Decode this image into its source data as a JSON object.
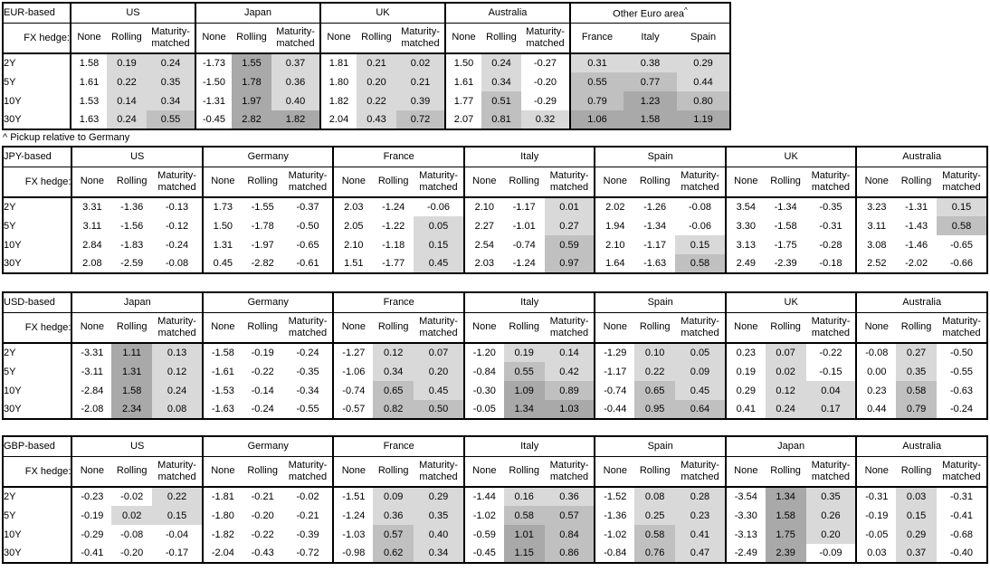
{
  "labels": {
    "fx_hedge": "FX hedge:"
  },
  "tenors": [
    "2Y",
    "5Y",
    "10Y",
    "30Y"
  ],
  "footnote": "^ Pickup relative to Germany",
  "heatmap": {
    "light": "#d9d9d9",
    "medium": "#c0c0c0",
    "dark": "#a9a9a9",
    "thresholds": [
      0,
      0.5,
      1.0
    ]
  },
  "tables": [
    {
      "label": "EUR-based",
      "groups": [
        {
          "name": "US",
          "cols": [
            "None",
            "Rolling",
            "Maturity-matched"
          ],
          "rows": [
            [
              "1.58",
              "0.19",
              "0.24"
            ],
            [
              "1.61",
              "0.22",
              "0.35"
            ],
            [
              "1.53",
              "0.14",
              "0.34"
            ],
            [
              "1.63",
              "0.24",
              "0.55"
            ]
          ]
        },
        {
          "name": "Japan",
          "cols": [
            "None",
            "Rolling",
            "Maturity-matched"
          ],
          "rows": [
            [
              "-1.73",
              "1.55",
              "0.37"
            ],
            [
              "-1.50",
              "1.78",
              "0.36"
            ],
            [
              "-1.31",
              "1.97",
              "0.40"
            ],
            [
              "-0.45",
              "2.82",
              "1.82"
            ]
          ]
        },
        {
          "name": "UK",
          "cols": [
            "None",
            "Rolling",
            "Maturity-matched"
          ],
          "rows": [
            [
              "1.81",
              "0.21",
              "0.02"
            ],
            [
              "1.80",
              "0.20",
              "0.21"
            ],
            [
              "1.82",
              "0.22",
              "0.39"
            ],
            [
              "2.04",
              "0.43",
              "0.72"
            ]
          ]
        },
        {
          "name": "Australia",
          "cols": [
            "None",
            "Rolling",
            "Maturity-matched"
          ],
          "rows": [
            [
              "1.50",
              "0.24",
              "-0.27"
            ],
            [
              "1.61",
              "0.34",
              "-0.20"
            ],
            [
              "1.77",
              "0.51",
              "-0.29"
            ],
            [
              "2.07",
              "0.81",
              "0.32"
            ]
          ]
        },
        {
          "name": "Other Euro area",
          "sup": "^",
          "shade_all": true,
          "cols": [
            "France",
            "Italy",
            "Spain"
          ],
          "rows": [
            [
              "0.31",
              "0.38",
              "0.29"
            ],
            [
              "0.55",
              "0.77",
              "0.44"
            ],
            [
              "0.79",
              "1.23",
              "0.80"
            ],
            [
              "1.06",
              "1.58",
              "1.19"
            ]
          ]
        }
      ]
    },
    {
      "label": "JPY-based",
      "groups": [
        {
          "name": "US",
          "cols": [
            "None",
            "Rolling",
            "Maturity-matched"
          ],
          "rows": [
            [
              "3.31",
              "-1.36",
              "-0.13"
            ],
            [
              "3.11",
              "-1.56",
              "-0.12"
            ],
            [
              "2.84",
              "-1.83",
              "-0.24"
            ],
            [
              "2.08",
              "-2.59",
              "-0.08"
            ]
          ]
        },
        {
          "name": "Germany",
          "cols": [
            "None",
            "Rolling",
            "Maturity-matched"
          ],
          "rows": [
            [
              "1.73",
              "-1.55",
              "-0.37"
            ],
            [
              "1.50",
              "-1.78",
              "-0.50"
            ],
            [
              "1.31",
              "-1.97",
              "-0.65"
            ],
            [
              "0.45",
              "-2.82",
              "-0.61"
            ]
          ]
        },
        {
          "name": "France",
          "cols": [
            "None",
            "Rolling",
            "Maturity-matched"
          ],
          "rows": [
            [
              "2.03",
              "-1.24",
              "-0.06"
            ],
            [
              "2.05",
              "-1.22",
              "0.05"
            ],
            [
              "2.10",
              "-1.18",
              "0.15"
            ],
            [
              "1.51",
              "-1.77",
              "0.45"
            ]
          ]
        },
        {
          "name": "Italy",
          "cols": [
            "None",
            "Rolling",
            "Maturity-matched"
          ],
          "rows": [
            [
              "2.10",
              "-1.17",
              "0.01"
            ],
            [
              "2.27",
              "-1.01",
              "0.27"
            ],
            [
              "2.54",
              "-0.74",
              "0.59"
            ],
            [
              "2.03",
              "-1.24",
              "0.97"
            ]
          ]
        },
        {
          "name": "Spain",
          "cols": [
            "None",
            "Rolling",
            "Maturity-matched"
          ],
          "rows": [
            [
              "2.02",
              "-1.26",
              "-0.08"
            ],
            [
              "1.94",
              "-1.34",
              "-0.06"
            ],
            [
              "2.10",
              "-1.17",
              "0.15"
            ],
            [
              "1.64",
              "-1.63",
              "0.58"
            ]
          ]
        },
        {
          "name": "UK",
          "cols": [
            "None",
            "Rolling",
            "Maturity-matched"
          ],
          "rows": [
            [
              "3.54",
              "-1.34",
              "-0.35"
            ],
            [
              "3.30",
              "-1.58",
              "-0.31"
            ],
            [
              "3.13",
              "-1.75",
              "-0.28"
            ],
            [
              "2.49",
              "-2.39",
              "-0.18"
            ]
          ]
        },
        {
          "name": "Australia",
          "cols": [
            "None",
            "Rolling",
            "Maturity-matched"
          ],
          "rows": [
            [
              "3.23",
              "-1.31",
              "0.15"
            ],
            [
              "3.11",
              "-1.43",
              "0.58"
            ],
            [
              "3.08",
              "-1.46",
              "-0.65"
            ],
            [
              "2.52",
              "-2.02",
              "-0.66"
            ]
          ]
        }
      ]
    },
    {
      "label": "USD-based",
      "groups": [
        {
          "name": "Japan",
          "cols": [
            "None",
            "Rolling",
            "Maturity-matched"
          ],
          "rows": [
            [
              "-3.31",
              "1.11",
              "0.13"
            ],
            [
              "-3.11",
              "1.31",
              "0.12"
            ],
            [
              "-2.84",
              "1.58",
              "0.24"
            ],
            [
              "-2.08",
              "2.34",
              "0.08"
            ]
          ]
        },
        {
          "name": "Germany",
          "cols": [
            "None",
            "Rolling",
            "Maturity-matched"
          ],
          "rows": [
            [
              "-1.58",
              "-0.19",
              "-0.24"
            ],
            [
              "-1.61",
              "-0.22",
              "-0.35"
            ],
            [
              "-1.53",
              "-0.14",
              "-0.34"
            ],
            [
              "-1.63",
              "-0.24",
              "-0.55"
            ]
          ]
        },
        {
          "name": "France",
          "cols": [
            "None",
            "Rolling",
            "Maturity-matched"
          ],
          "rows": [
            [
              "-1.27",
              "0.12",
              "0.07"
            ],
            [
              "-1.06",
              "0.34",
              "0.20"
            ],
            [
              "-0.74",
              "0.65",
              "0.45"
            ],
            [
              "-0.57",
              "0.82",
              "0.50"
            ]
          ]
        },
        {
          "name": "Italy",
          "cols": [
            "None",
            "Rolling",
            "Maturity-matched"
          ],
          "rows": [
            [
              "-1.20",
              "0.19",
              "0.14"
            ],
            [
              "-0.84",
              "0.55",
              "0.42"
            ],
            [
              "-0.30",
              "1.09",
              "0.89"
            ],
            [
              "-0.05",
              "1.34",
              "1.03"
            ]
          ]
        },
        {
          "name": "Spain",
          "cols": [
            "None",
            "Rolling",
            "Maturity-matched"
          ],
          "rows": [
            [
              "-1.29",
              "0.10",
              "0.05"
            ],
            [
              "-1.17",
              "0.22",
              "0.09"
            ],
            [
              "-0.74",
              "0.65",
              "0.45"
            ],
            [
              "-0.44",
              "0.95",
              "0.64"
            ]
          ]
        },
        {
          "name": "UK",
          "cols": [
            "None",
            "Rolling",
            "Maturity-matched"
          ],
          "rows": [
            [
              "0.23",
              "0.07",
              "-0.22"
            ],
            [
              "0.19",
              "0.02",
              "-0.15"
            ],
            [
              "0.29",
              "0.12",
              "0.04"
            ],
            [
              "0.41",
              "0.24",
              "0.17"
            ]
          ]
        },
        {
          "name": "Australia",
          "cols": [
            "None",
            "Rolling",
            "Maturity-matched"
          ],
          "rows": [
            [
              "-0.08",
              "0.27",
              "-0.50"
            ],
            [
              "0.00",
              "0.35",
              "-0.55"
            ],
            [
              "0.23",
              "0.58",
              "-0.63"
            ],
            [
              "0.44",
              "0.79",
              "-0.24"
            ]
          ]
        }
      ]
    },
    {
      "label": "GBP-based",
      "groups": [
        {
          "name": "US",
          "cols": [
            "None",
            "Rolling",
            "Maturity-matched"
          ],
          "rows": [
            [
              "-0.23",
              "-0.02",
              "0.22"
            ],
            [
              "-0.19",
              "0.02",
              "0.15"
            ],
            [
              "-0.29",
              "-0.08",
              "-0.04"
            ],
            [
              "-0.41",
              "-0.20",
              "-0.17"
            ]
          ]
        },
        {
          "name": "Germany",
          "cols": [
            "None",
            "Rolling",
            "Maturity-matched"
          ],
          "rows": [
            [
              "-1.81",
              "-0.21",
              "-0.02"
            ],
            [
              "-1.80",
              "-0.20",
              "-0.21"
            ],
            [
              "-1.82",
              "-0.22",
              "-0.39"
            ],
            [
              "-2.04",
              "-0.43",
              "-0.72"
            ]
          ]
        },
        {
          "name": "France",
          "cols": [
            "None",
            "Rolling",
            "Maturity-matched"
          ],
          "rows": [
            [
              "-1.51",
              "0.09",
              "0.29"
            ],
            [
              "-1.24",
              "0.36",
              "0.35"
            ],
            [
              "-1.03",
              "0.57",
              "0.40"
            ],
            [
              "-0.98",
              "0.62",
              "0.34"
            ]
          ]
        },
        {
          "name": "Italy",
          "cols": [
            "None",
            "Rolling",
            "Maturity-matched"
          ],
          "rows": [
            [
              "-1.44",
              "0.16",
              "0.36"
            ],
            [
              "-1.02",
              "0.58",
              "0.57"
            ],
            [
              "-0.59",
              "1.01",
              "0.84"
            ],
            [
              "-0.45",
              "1.15",
              "0.86"
            ]
          ]
        },
        {
          "name": "Spain",
          "cols": [
            "None",
            "Rolling",
            "Maturity-matched"
          ],
          "rows": [
            [
              "-1.52",
              "0.08",
              "0.28"
            ],
            [
              "-1.36",
              "0.25",
              "0.23"
            ],
            [
              "-1.02",
              "0.58",
              "0.41"
            ],
            [
              "-0.84",
              "0.76",
              "0.47"
            ]
          ]
        },
        {
          "name": "Japan",
          "cols": [
            "None",
            "Rolling",
            "Maturity-matched"
          ],
          "rows": [
            [
              "-3.54",
              "1.34",
              "0.35"
            ],
            [
              "-3.30",
              "1.58",
              "0.26"
            ],
            [
              "-3.13",
              "1.75",
              "0.20"
            ],
            [
              "-2.49",
              "2.39",
              "-0.09"
            ]
          ]
        },
        {
          "name": "Australia",
          "cols": [
            "None",
            "Rolling",
            "Maturity-matched"
          ],
          "rows": [
            [
              "-0.31",
              "0.03",
              "-0.31"
            ],
            [
              "-0.19",
              "0.15",
              "-0.41"
            ],
            [
              "-0.05",
              "0.29",
              "-0.68"
            ],
            [
              "0.03",
              "0.37",
              "-0.40"
            ]
          ]
        }
      ]
    }
  ]
}
